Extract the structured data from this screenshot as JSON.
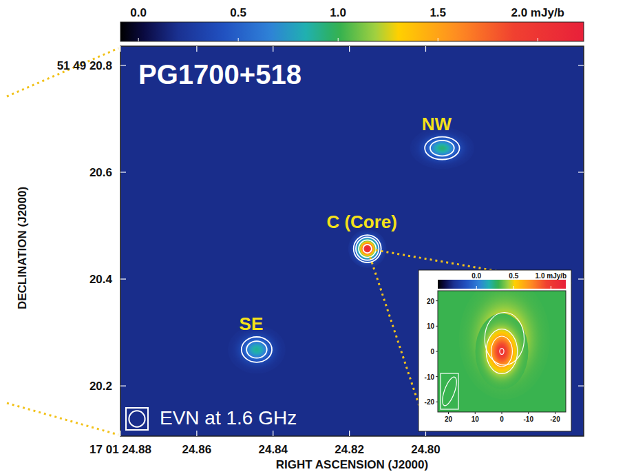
{
  "chart_data": {
    "type": "radio_map",
    "title": "PG1700+518",
    "annotation": "EVN at 1.6 GHz",
    "x_label": "RIGHT ASCENSION (J2000)",
    "y_label": "DECLINATION (J2000)",
    "xlim": [
      24.88,
      24.7586
    ],
    "ylim": [
      20.106,
      20.836
    ],
    "xticks": [
      {
        "value": 24.88,
        "label": "17 01 24.88"
      },
      24.86,
      24.84,
      24.82,
      {
        "value": 24.8,
        "label": "24.80"
      }
    ],
    "yticks": [
      {
        "value": 20.8,
        "label": "51 49 20.8"
      },
      20.6,
      20.4,
      20.2
    ],
    "colorbar_lim": [
      -0.09,
      2.23
    ],
    "colorbar_ticks": [
      {
        "value": 0,
        "label": "0.0"
      },
      0.5,
      {
        "value": 1,
        "label": "1.0"
      },
      1.5,
      {
        "value": 2,
        "label": "2.0 mJy/b"
      }
    ],
    "background": 0.18,
    "beam": 0.03,
    "contour_levels": [
      0.2,
      0.4,
      0.8,
      1.6
    ],
    "sources": [
      {
        "name": "NW",
        "ra": 24.7957,
        "dec": 20.645,
        "peak": 0.75,
        "sigma": [
          0.02,
          0.013
        ]
      },
      {
        "name": "C (Core)",
        "ra": 24.8153,
        "dec": 20.4568,
        "peak": 2.0,
        "sigma": [
          0.012,
          0.012
        ]
      },
      {
        "name": "SE",
        "ra": 24.8443,
        "dec": 20.268,
        "peak": 0.7,
        "sigma": [
          0.018,
          0.015
        ]
      }
    ],
    "inset": {
      "xlim": [
        24,
        -24
      ],
      "ylim": [
        -24,
        24
      ],
      "xticks": [
        20,
        10,
        0,
        -10,
        -20
      ],
      "yticks": [
        20,
        10,
        0,
        -10,
        -20
      ],
      "colorbar_lim": [
        -0.52,
        1.2
      ],
      "colorbar_ticks": [
        {
          "value": 0,
          "label": "0.0"
        },
        0.5,
        {
          "value": 1,
          "label": "1.0 mJy/b"
        }
      ],
      "background": 0.3,
      "contour_levels": [
        0.15,
        0.35,
        0.7
      ],
      "beam": [
        4,
        12
      ],
      "components": [
        {
          "x": -1,
          "y": 5,
          "peak": 0.35,
          "sigma": [
            6,
            8
          ]
        },
        {
          "x": 0,
          "y": 0,
          "peak": 0.72,
          "sigma": [
            3.5,
            5
          ]
        }
      ]
    }
  }
}
